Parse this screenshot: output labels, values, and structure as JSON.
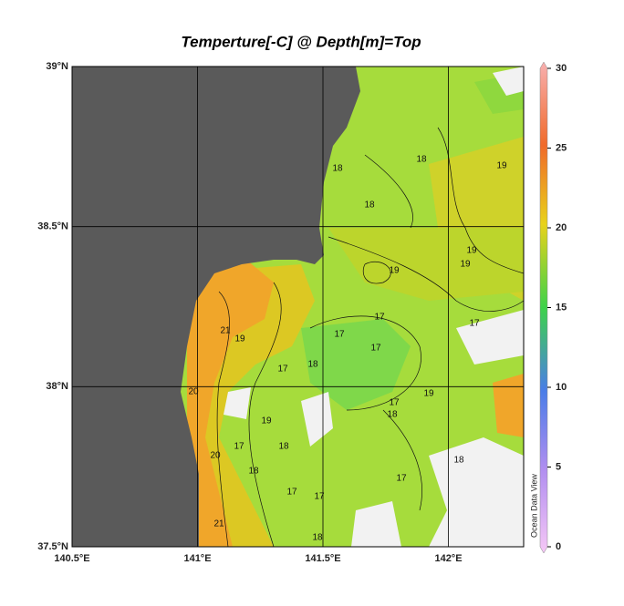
{
  "chart_data": {
    "type": "map",
    "title": "Temperture[-C] @ Depth[m]=Top",
    "xlim": [
      140.5,
      142.3
    ],
    "ylim": [
      37.5,
      39
    ],
    "xticks": [
      {
        "value": 140.5,
        "label": "140.5°E"
      },
      {
        "value": 141,
        "label": "141°E"
      },
      {
        "value": 141.5,
        "label": "141.5°E"
      },
      {
        "value": 142,
        "label": "142°E"
      }
    ],
    "yticks": [
      {
        "value": 37.5,
        "label": "37.5°N"
      },
      {
        "value": 38,
        "label": "38°N"
      },
      {
        "value": 38.5,
        "label": "38.5°N"
      },
      {
        "value": 39,
        "label": "39°N"
      }
    ],
    "grid": true,
    "colorbar": {
      "clim": [
        0,
        30
      ],
      "ticks": [
        0,
        5,
        10,
        15,
        20,
        25,
        30
      ]
    },
    "watermark": "Ocean Data View",
    "contour_labels": [
      18,
      18,
      18,
      19,
      19,
      19,
      19,
      21,
      19,
      20,
      17,
      17,
      18,
      17,
      19,
      17,
      18,
      17,
      17,
      18,
      18,
      19,
      20,
      21,
      17,
      17,
      18,
      18,
      17,
      17
    ]
  }
}
